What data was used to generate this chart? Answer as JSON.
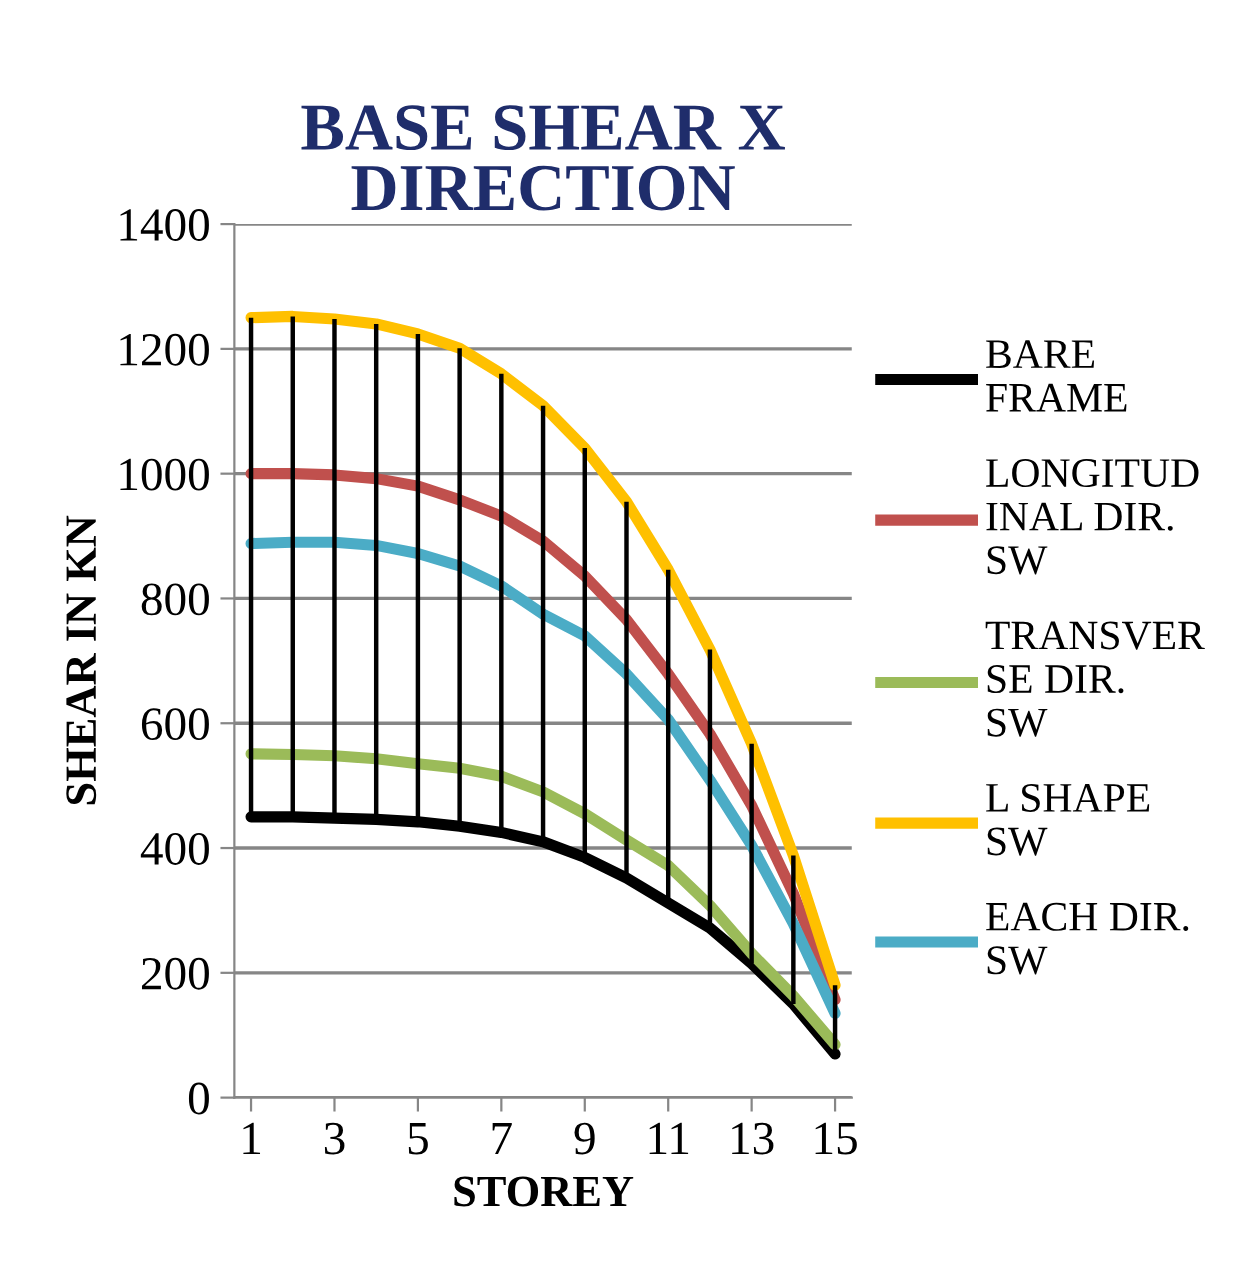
{
  "chart_data": {
    "type": "line",
    "title": "BASE SHEAR X DIRECTION",
    "xlabel": "STOREY",
    "ylabel": "SHEAR IN KN",
    "x": [
      1,
      2,
      3,
      4,
      5,
      6,
      7,
      8,
      9,
      10,
      11,
      12,
      13,
      14,
      15
    ],
    "xlim": [
      0.6,
      15.4
    ],
    "xticks": [
      1,
      3,
      5,
      7,
      9,
      11,
      13,
      15
    ],
    "ylim": [
      0,
      1400
    ],
    "yticks": [
      0,
      200,
      400,
      600,
      800,
      1000,
      1200,
      1400
    ],
    "grid": "y",
    "legend": "right",
    "marker": "none",
    "line_style": "solid",
    "series": [
      {
        "name": "BARE FRAME",
        "color": "#000000",
        "values": [
          450,
          450,
          448,
          446,
          442,
          435,
          425,
          410,
          385,
          352,
          312,
          272,
          215,
          150,
          70
        ]
      },
      {
        "name": "LONGITUDINAL DIR. SW",
        "color": "#c0504d",
        "values": [
          1000,
          1000,
          998,
          992,
          980,
          958,
          932,
          892,
          836,
          766,
          679,
          583,
          468,
          327,
          157
        ]
      },
      {
        "name": "TRANSVERSE DIR. SW",
        "color": "#9bbb59",
        "values": [
          551,
          550,
          548,
          543,
          535,
          528,
          515,
          490,
          455,
          413,
          372,
          308,
          231,
          163,
          85
        ]
      },
      {
        "name": "L SHAPE SW",
        "color": "#ffc000",
        "values": [
          1250,
          1252,
          1248,
          1240,
          1224,
          1201,
          1160,
          1109,
          1041,
          955,
          846,
          718,
          567,
          388,
          180
        ],
        "errors": [
          [
            450,
            1250
          ],
          [
            450,
            1252
          ],
          [
            448,
            1248
          ],
          [
            446,
            1240
          ],
          [
            442,
            1224
          ],
          [
            435,
            1201
          ],
          [
            425,
            1160
          ],
          [
            410,
            1109
          ],
          [
            385,
            1041
          ],
          [
            352,
            955
          ],
          [
            312,
            846
          ],
          [
            272,
            718
          ],
          [
            215,
            567
          ],
          [
            150,
            388
          ],
          [
            70,
            180
          ]
        ]
      },
      {
        "name": "EACH DIR. SW",
        "color": "#4bacc6",
        "values": [
          888,
          890,
          890,
          885,
          872,
          852,
          820,
          775,
          740,
          679,
          606,
          509,
          404,
          279,
          135
        ]
      }
    ]
  }
}
